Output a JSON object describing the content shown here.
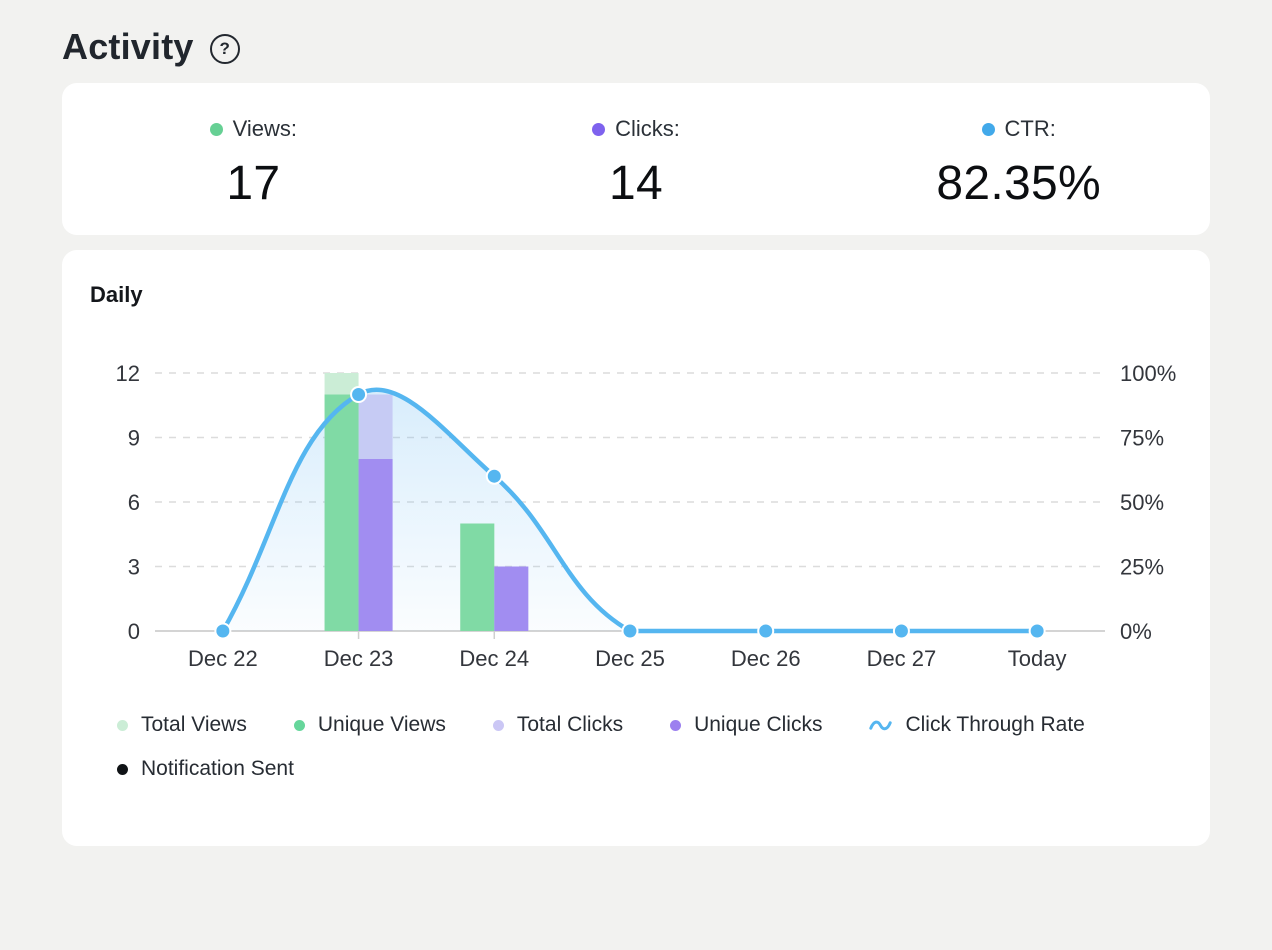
{
  "header": {
    "title": "Activity",
    "help_icon": "?"
  },
  "stats": [
    {
      "label": "Views:",
      "value": "17",
      "color": "#66d094"
    },
    {
      "label": "Clicks:",
      "value": "14",
      "color": "#7e62ee"
    },
    {
      "label": "CTR:",
      "value": "82.35%",
      "color": "#42a9ea"
    }
  ],
  "chart_card": {
    "title": "Daily"
  },
  "chart_data": {
    "type": "bar",
    "title": "Daily",
    "categories": [
      "Dec 22",
      "Dec 23",
      "Dec 24",
      "Dec 25",
      "Dec 26",
      "Dec 27",
      "Today"
    ],
    "series": [
      {
        "name": "Total Views",
        "type": "bar",
        "slot": "views",
        "shade": "total",
        "color": "#cbedd6",
        "values": [
          0,
          12,
          5,
          0,
          0,
          0,
          0
        ]
      },
      {
        "name": "Unique Views",
        "type": "bar",
        "slot": "views",
        "shade": "unique",
        "color": "#80daa5",
        "values": [
          0,
          11,
          5,
          0,
          0,
          0,
          0
        ]
      },
      {
        "name": "Total Clicks",
        "type": "bar",
        "slot": "clicks",
        "shade": "total",
        "color": "#c6cbf4",
        "values": [
          0,
          11,
          3,
          0,
          0,
          0,
          0
        ]
      },
      {
        "name": "Unique Clicks",
        "type": "bar",
        "slot": "clicks",
        "shade": "unique",
        "color": "#a18df1",
        "values": [
          0,
          8,
          3,
          0,
          0,
          0,
          0
        ]
      },
      {
        "name": "Click Through Rate",
        "type": "line",
        "axis": "right",
        "color": "#55b6f0",
        "values": [
          0,
          91.67,
          60,
          0,
          0,
          0,
          0
        ]
      }
    ],
    "left_axis": {
      "ticks": [
        "0",
        "3",
        "6",
        "9",
        "12"
      ],
      "values": [
        0,
        3,
        6,
        9,
        12
      ],
      "max": 12
    },
    "right_axis": {
      "ticks": [
        "0%",
        "25%",
        "50%",
        "75%",
        "100%"
      ],
      "values": [
        0,
        25,
        50,
        75,
        100
      ],
      "max": 100
    },
    "grid": "dashed-horizontal",
    "legend_position": "bottom"
  },
  "legend": {
    "rows": [
      [
        {
          "label": "Total Views",
          "color": "#cbedd6",
          "marker": "dot"
        },
        {
          "label": "Unique Views",
          "color": "#66d69b",
          "marker": "dot"
        },
        {
          "label": "Total Clicks",
          "color": "#cbc7f5",
          "marker": "dot"
        },
        {
          "label": "Unique Clicks",
          "color": "#9c80ef",
          "marker": "dot"
        },
        {
          "label": "Click Through Rate",
          "color": "#55b6f0",
          "marker": "wave"
        }
      ],
      [
        {
          "label": "Notification Sent",
          "color": "#101316",
          "marker": "dot"
        }
      ]
    ]
  },
  "colors": {
    "background": "#f2f2f0",
    "card": "#ffffff",
    "line": "#55b6f0",
    "area_fill": "#66b8f3",
    "grid": "#dcdcdc",
    "baseline": "#c6c6c6",
    "axis_text": "#33363c"
  }
}
